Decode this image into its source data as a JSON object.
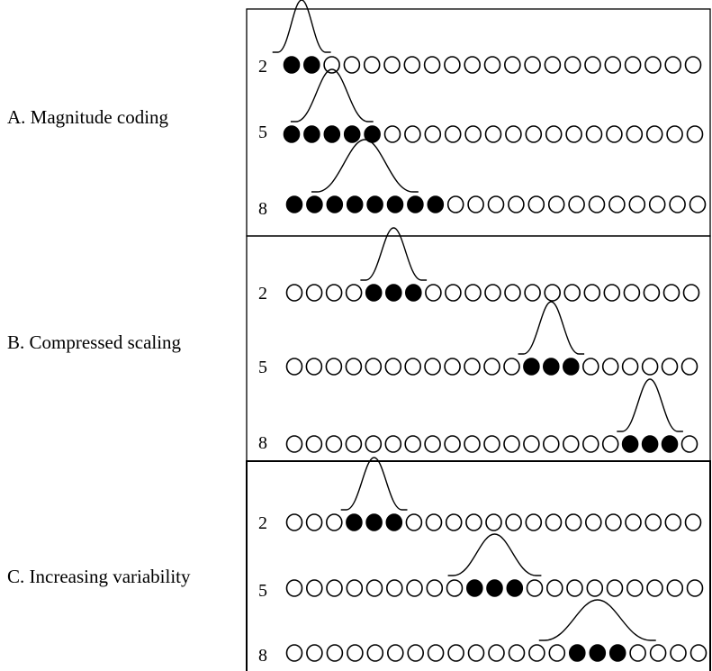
{
  "panels": [
    {
      "label": "A. Magnitude coding",
      "rows": [
        {
          "number": "2",
          "filled": [
            0,
            1
          ],
          "curve": "narrow"
        },
        {
          "number": "5",
          "filled": [
            0,
            1,
            2,
            3,
            4
          ],
          "curve": "narrow"
        },
        {
          "number": "8",
          "filled": [
            0,
            1,
            2,
            3,
            4,
            5,
            6,
            7
          ],
          "curve": "narrow"
        }
      ]
    },
    {
      "label": "B. Compressed scaling",
      "rows": [
        {
          "number": "2",
          "filled": [
            4,
            5,
            6
          ],
          "curve": "narrow"
        },
        {
          "number": "5",
          "filled": [
            12,
            13,
            14
          ],
          "curve": "narrow"
        },
        {
          "number": "8",
          "filled": [
            17,
            18,
            19
          ],
          "curve": "narrow"
        }
      ]
    },
    {
      "label": "C. Increasing variability",
      "rows": [
        {
          "number": "2",
          "filled": [
            3,
            4,
            5
          ],
          "curve": "narrow"
        },
        {
          "number": "5",
          "filled": [
            9,
            10,
            11
          ],
          "curve": "medium"
        },
        {
          "number": "8",
          "filled": [
            14,
            15,
            16
          ],
          "curve": "wide"
        }
      ]
    }
  ],
  "units_per_row": 21,
  "colors": {
    "ink": "#000000",
    "background": "#ffffff"
  }
}
